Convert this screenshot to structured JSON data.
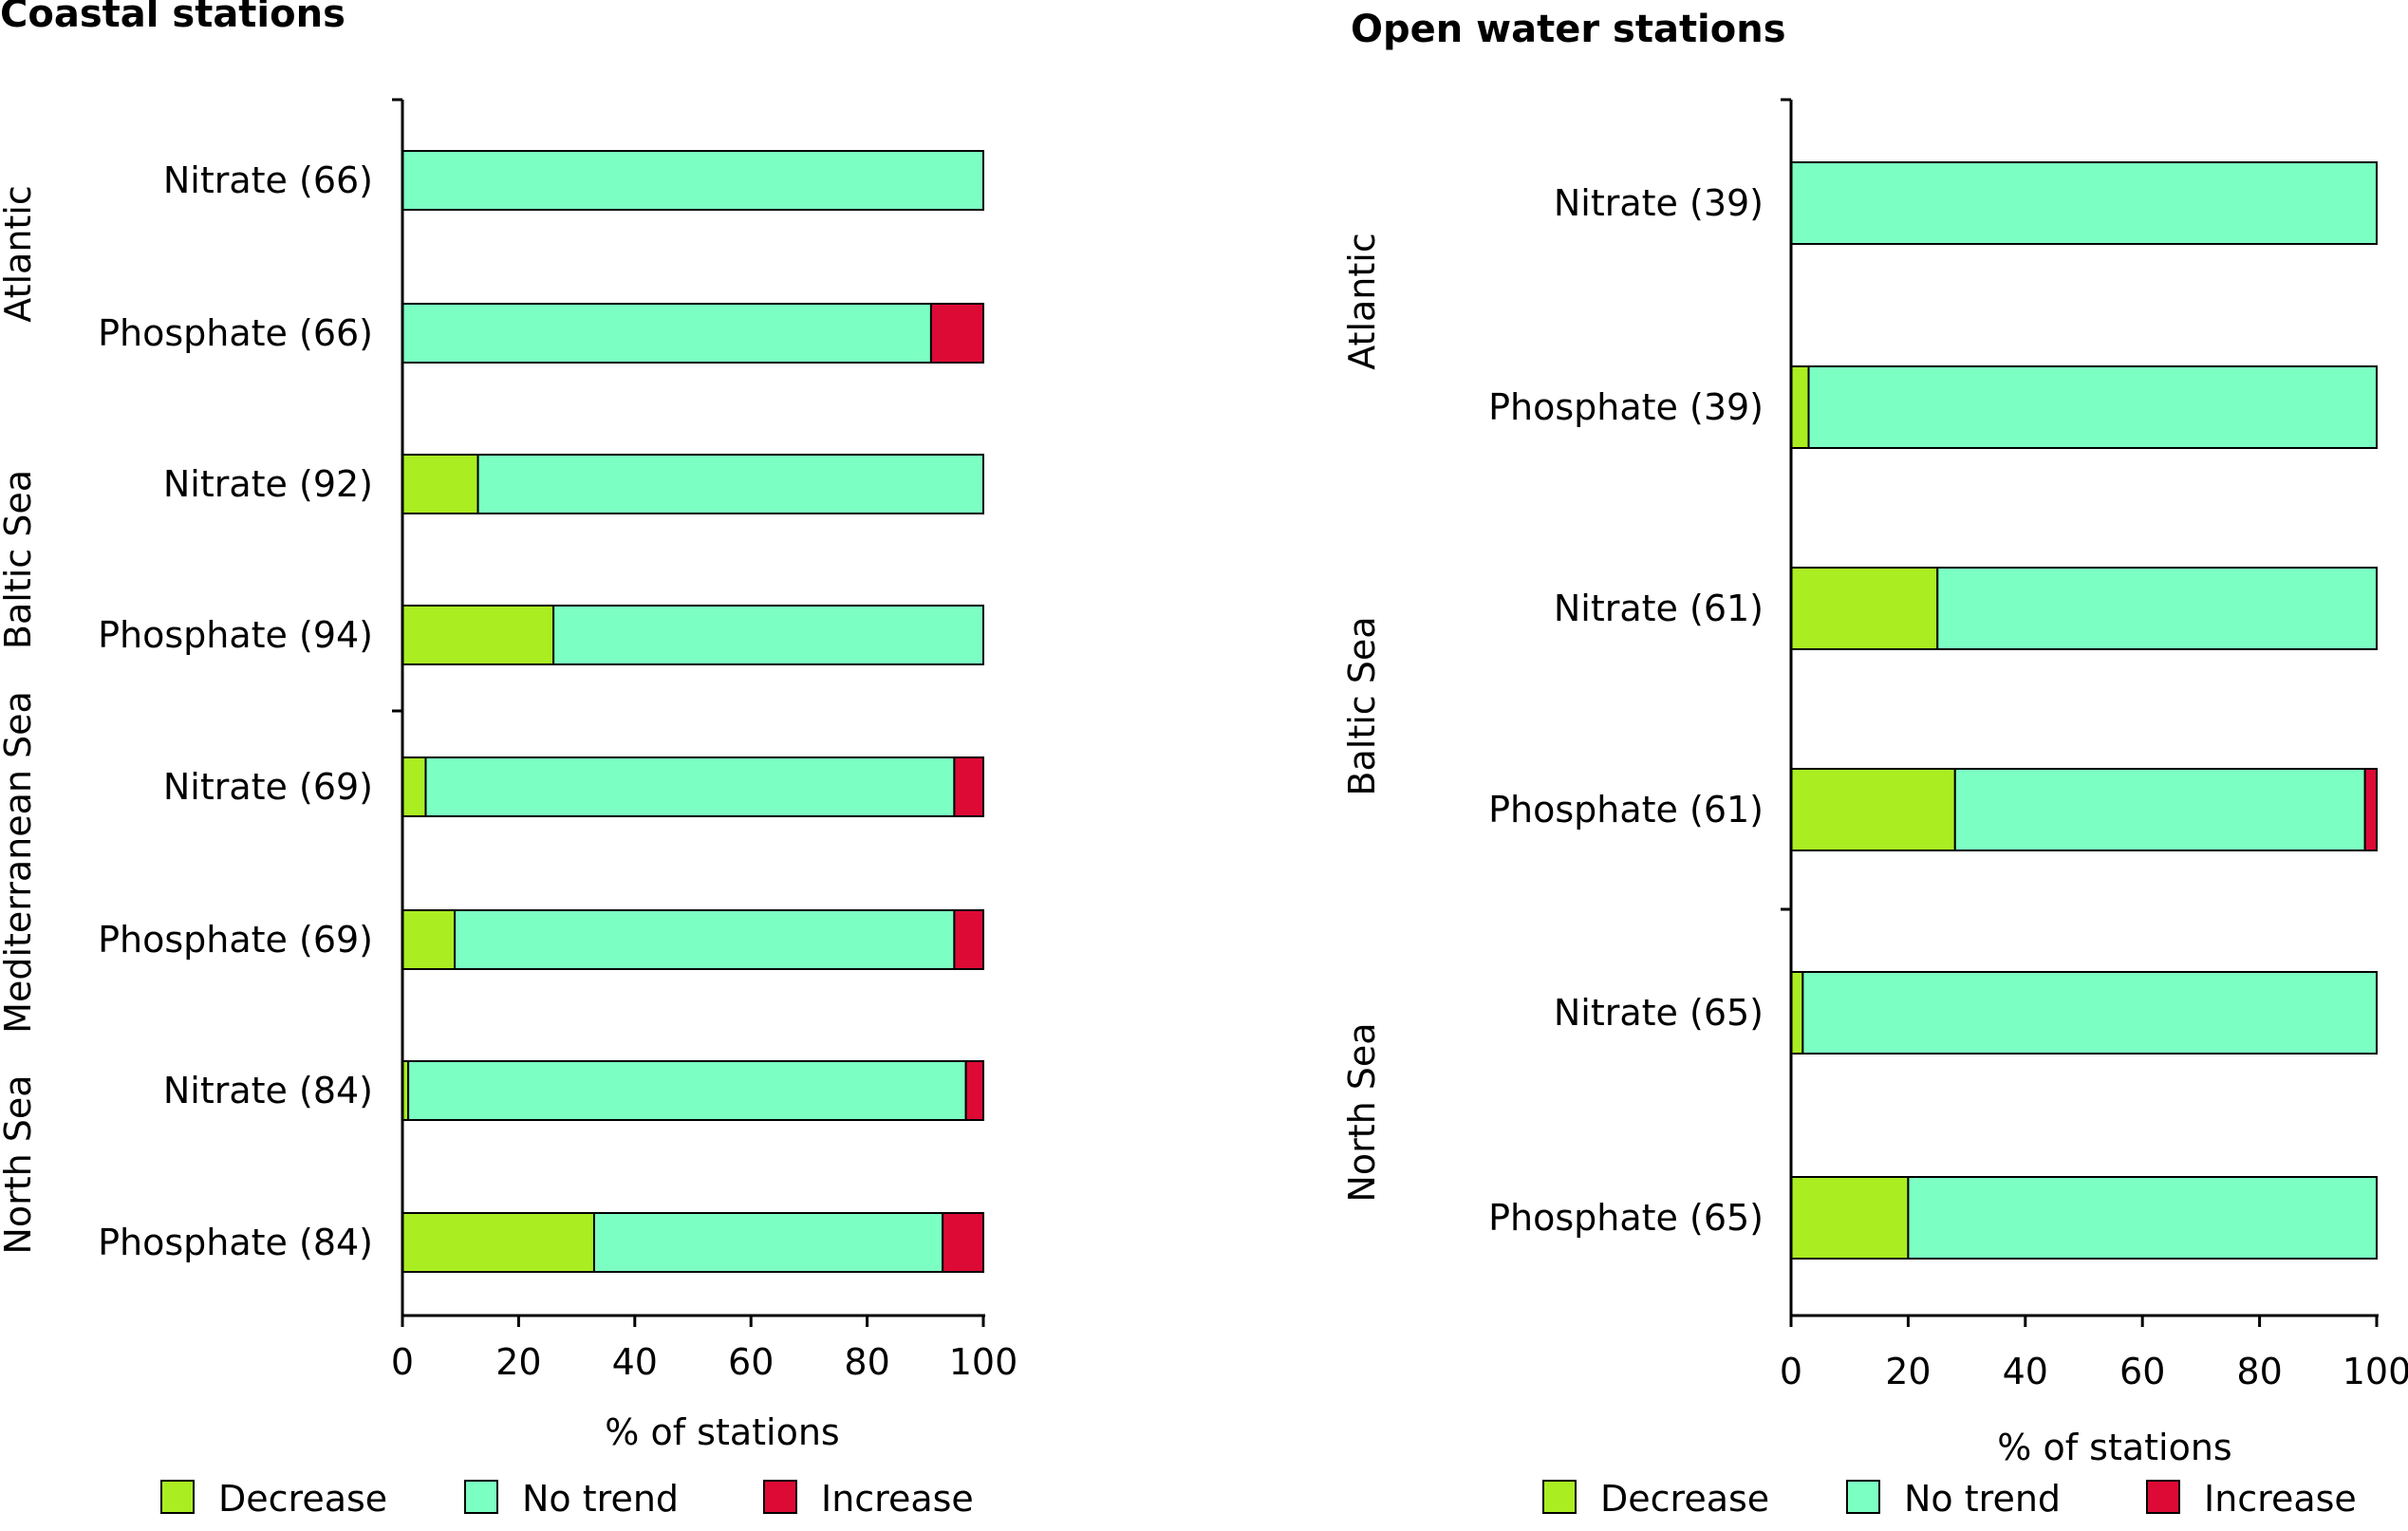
{
  "colors": {
    "decrease": "#aaee22",
    "no_trend": "#7cffc2",
    "increase": "#dd0a35",
    "stroke": "#000000"
  },
  "legend": [
    {
      "key": "decrease",
      "label": "Decrease"
    },
    {
      "key": "no_trend",
      "label": "No trend"
    },
    {
      "key": "increase",
      "label": "Increase"
    }
  ],
  "chart_data": [
    {
      "type": "bar",
      "orientation": "horizontal",
      "stacked": true,
      "title": "Coastal stations",
      "xlabel": "% of stations",
      "xlim": [
        0,
        100
      ],
      "xticks": [
        "0",
        "20",
        "40",
        "60",
        "80",
        "100"
      ],
      "groups": [
        {
          "name": "Atlantic",
          "rows": [
            0,
            1
          ]
        },
        {
          "name": "Baltic Sea",
          "rows": [
            2,
            3
          ]
        },
        {
          "name": "Mediterranean Sea",
          "rows": [
            4,
            5
          ]
        },
        {
          "name": "North Sea",
          "rows": [
            6,
            7
          ]
        }
      ],
      "categories": [
        "Nitrate (66)",
        "Phosphate (66)",
        "Nitrate (92)",
        "Phosphate (94)",
        "Nitrate (69)",
        "Phosphate (69)",
        "Nitrate (84)",
        "Phosphate (84)"
      ],
      "series": [
        {
          "name": "Decrease",
          "values": [
            0,
            0,
            13,
            26,
            4,
            9,
            1,
            33
          ]
        },
        {
          "name": "No trend",
          "values": [
            100,
            91,
            87,
            74,
            91,
            86,
            96,
            60
          ]
        },
        {
          "name": "Increase",
          "values": [
            0,
            9,
            0,
            0,
            5,
            5,
            3,
            7
          ]
        }
      ]
    },
    {
      "type": "bar",
      "orientation": "horizontal",
      "stacked": true,
      "title": "Open water stations",
      "xlabel": "% of stations",
      "xlim": [
        0,
        100
      ],
      "xticks": [
        "0",
        "20",
        "40",
        "60",
        "80",
        "100"
      ],
      "groups": [
        {
          "name": "Atlantic",
          "rows": [
            0,
            1
          ]
        },
        {
          "name": "Baltic Sea",
          "rows": [
            2,
            3
          ]
        },
        {
          "name": "North Sea",
          "rows": [
            4,
            5
          ]
        }
      ],
      "categories": [
        "Nitrate (39)",
        "Phosphate (39)",
        "Nitrate (61)",
        "Phosphate (61)",
        "Nitrate (65)",
        "Phosphate (65)"
      ],
      "series": [
        {
          "name": "Decrease",
          "values": [
            0,
            3,
            25,
            28,
            2,
            20
          ]
        },
        {
          "name": "No trend",
          "values": [
            100,
            97,
            75,
            70,
            98,
            80
          ]
        },
        {
          "name": "Increase",
          "values": [
            0,
            0,
            0,
            2,
            0,
            0
          ]
        }
      ]
    }
  ]
}
